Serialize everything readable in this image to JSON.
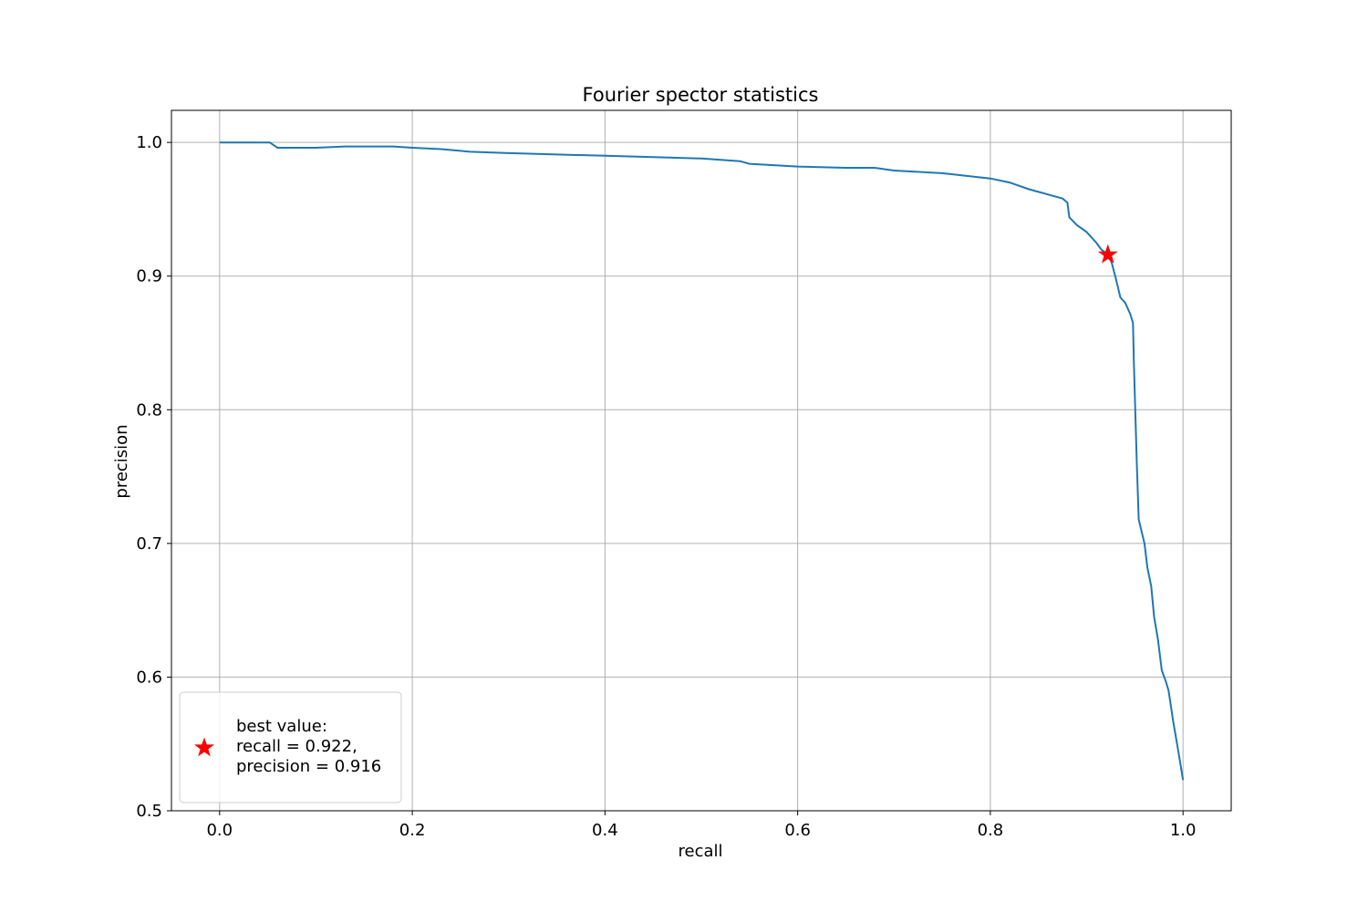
{
  "chart_data": {
    "type": "line",
    "title": "Fourier spector statistics",
    "xlabel": "recall",
    "ylabel": "precision",
    "xlim": [
      -0.05,
      1.05
    ],
    "ylim": [
      0.5,
      1.024
    ],
    "xticks": [
      0.0,
      0.2,
      0.4,
      0.6,
      0.8,
      1.0
    ],
    "xtick_labels": [
      "0.0",
      "0.2",
      "0.4",
      "0.6",
      "0.8",
      "1.0"
    ],
    "yticks": [
      0.5,
      0.6,
      0.7,
      0.8,
      0.9,
      1.0
    ],
    "ytick_labels": [
      "0.5",
      "0.6",
      "0.7",
      "0.8",
      "0.9",
      "1.0"
    ],
    "grid": true,
    "legend_position": "lower-left",
    "series": [
      {
        "color": "#1f77b4",
        "x": [
          0.0,
          0.052,
          0.056,
          0.06,
          0.1,
          0.13,
          0.18,
          0.2,
          0.23,
          0.26,
          0.3,
          0.35,
          0.4,
          0.45,
          0.5,
          0.54,
          0.55,
          0.6,
          0.65,
          0.68,
          0.7,
          0.75,
          0.8,
          0.82,
          0.84,
          0.86,
          0.875,
          0.88,
          0.882,
          0.89,
          0.9,
          0.91,
          0.915,
          0.922,
          0.926,
          0.93,
          0.935,
          0.94,
          0.945,
          0.948,
          0.949,
          0.952,
          0.954,
          0.96,
          0.963,
          0.967,
          0.97,
          0.974,
          0.978,
          0.982,
          0.985,
          0.99,
          0.995,
          1.0
        ],
        "y": [
          1.0,
          1.0,
          0.998,
          0.996,
          0.996,
          0.997,
          0.997,
          0.996,
          0.995,
          0.993,
          0.992,
          0.991,
          0.99,
          0.989,
          0.988,
          0.986,
          0.984,
          0.982,
          0.981,
          0.981,
          0.979,
          0.977,
          0.973,
          0.97,
          0.965,
          0.961,
          0.958,
          0.955,
          0.944,
          0.938,
          0.933,
          0.925,
          0.92,
          0.916,
          0.91,
          0.899,
          0.884,
          0.88,
          0.872,
          0.865,
          0.835,
          0.76,
          0.718,
          0.7,
          0.682,
          0.668,
          0.645,
          0.628,
          0.605,
          0.597,
          0.59,
          0.566,
          0.545,
          0.523
        ]
      }
    ],
    "best_point": {
      "x": 0.922,
      "y": 0.916,
      "color": "#ff0000",
      "marker": "star"
    },
    "legend": {
      "lines": [
        "best value:",
        "recall = 0.922,",
        "precision = 0.916"
      ]
    }
  }
}
